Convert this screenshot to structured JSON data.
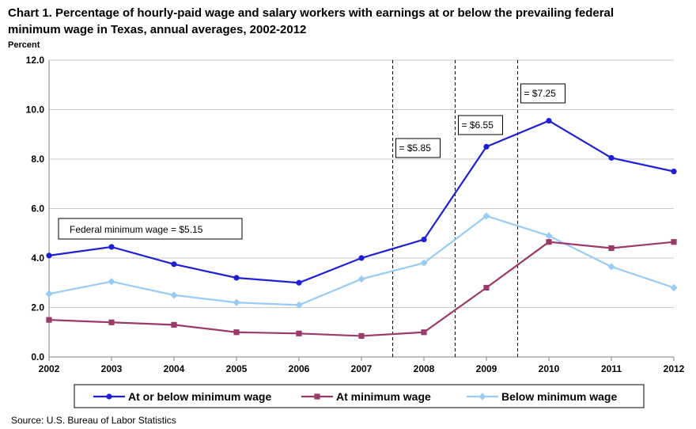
{
  "title_line1": "Chart 1. Percentage of hourly-paid wage and salary workers with earnings at or below the prevailing federal",
  "title_line2": "minimum wage in Texas, annual averages, 2002-2012",
  "source": "Source: U.S. Bureau of Labor Statistics",
  "chart_data": {
    "type": "line",
    "ylabel": "Percent",
    "xlabel": "",
    "ylim": [
      0,
      12
    ],
    "yticks": [
      "0.0",
      "2.0",
      "4.0",
      "6.0",
      "8.0",
      "10.0",
      "12.0"
    ],
    "x": [
      "2002",
      "2003",
      "2004",
      "2005",
      "2006",
      "2007",
      "2008",
      "2009",
      "2010",
      "2011",
      "2012"
    ],
    "grid": true,
    "legend_position": "bottom",
    "series": [
      {
        "name": "At or below minimum wage",
        "color": "#1f1fd6",
        "marker": "circle",
        "values": [
          4.1,
          4.45,
          3.75,
          3.2,
          3.0,
          4.0,
          4.75,
          8.5,
          9.55,
          8.05,
          7.5
        ]
      },
      {
        "name": "At minimum wage",
        "color": "#9a3b6a",
        "marker": "square",
        "values": [
          1.5,
          1.4,
          1.3,
          1.0,
          0.95,
          0.85,
          1.0,
          2.8,
          4.65,
          4.4,
          4.65
        ]
      },
      {
        "name": "Below minimum wage",
        "color": "#99ccf5",
        "marker": "diamond",
        "values": [
          2.55,
          3.05,
          2.5,
          2.2,
          2.1,
          3.15,
          3.8,
          5.7,
          4.9,
          3.65,
          2.8
        ]
      }
    ],
    "annotations": [
      {
        "text": "Federal minimum wage = $5.15"
      },
      {
        "text": "= $5.85",
        "after_year": "2007"
      },
      {
        "text": "= $6.55",
        "after_year": "2008"
      },
      {
        "text": "= $7.25",
        "after_year": "2009"
      }
    ]
  }
}
